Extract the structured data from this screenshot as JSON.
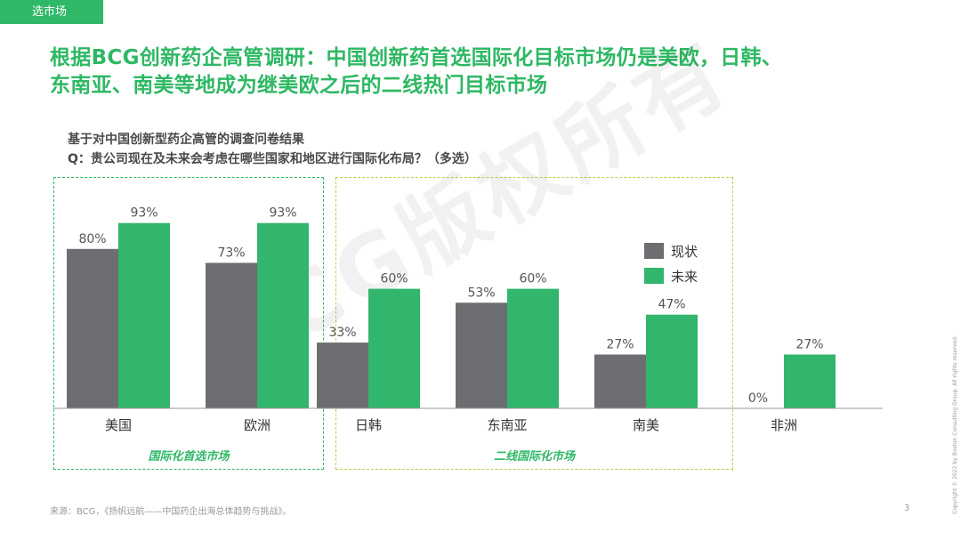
{
  "section_tag": "选市场",
  "headline": {
    "line1": "根据BCG创新药企高管调研：中国创新药首选国际化目标市场仍是美欧，日韩、",
    "line2": "东南亚、南美等地成为继美欧之后的二线热门目标市场"
  },
  "survey": {
    "basis": "基于对中国创新型药企高管的调查问卷结果",
    "question": "Q：贵公司现在及未来会考虑在哪些国家和地区进行国际化布局？（多选）"
  },
  "groups": {
    "primary": "国际化首选市场",
    "secondary": "二线国际化市场"
  },
  "colors": {
    "current": "#6d6e71",
    "future": "#32b56c",
    "brand_green": "#2fb868"
  },
  "chart_data": {
    "type": "bar",
    "categories": [
      "美国",
      "欧洲",
      "日韩",
      "东南亚",
      "南美",
      "非洲"
    ],
    "series": [
      {
        "name": "现状",
        "values": [
          80,
          73,
          33,
          53,
          27,
          0
        ]
      },
      {
        "name": "未来",
        "values": [
          93,
          93,
          60,
          60,
          47,
          27
        ]
      }
    ],
    "value_suffix": "%",
    "ylim": [
      0,
      100
    ],
    "legend_position": "right",
    "grid": false
  },
  "footer": {
    "source": "来源：BCG，《扬帆远航——中国药企出海总体趋势与挑战》。",
    "page": "3",
    "copyright": "Copyright © 2022 by Boston Consulting Group. All rights reserved."
  },
  "watermark": "BCG版权所有"
}
